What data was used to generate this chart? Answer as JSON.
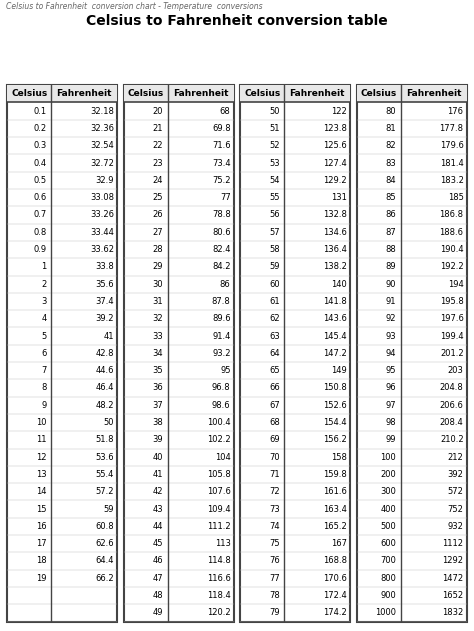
{
  "title": "Celsius to Fahrenheit conversion table",
  "subtitle": "Celsius to Fahrenheit  conversion chart - Temperature  conversions",
  "background_color": "#ffffff",
  "border_color": "#444444",
  "header_bg": "#e8e8e8",
  "divider_color": "#888888",
  "row_line_color": "#bbbbbb",
  "font_size_title": 10,
  "font_size_subtitle": 5.5,
  "font_size_header": 6.5,
  "font_size_data": 6.0,
  "columns": [
    {
      "celsius": [
        "0.1",
        "0.2",
        "0.3",
        "0.4",
        "0.5",
        "0.6",
        "0.7",
        "0.8",
        "0.9",
        "1",
        "2",
        "3",
        "4",
        "5",
        "6",
        "7",
        "8",
        "9",
        "10",
        "11",
        "12",
        "13",
        "14",
        "15",
        "16",
        "17",
        "18",
        "19"
      ],
      "fahrenheit": [
        "32.18",
        "32.36",
        "32.54",
        "32.72",
        "32.9",
        "33.08",
        "33.26",
        "33.44",
        "33.62",
        "33.8",
        "35.6",
        "37.4",
        "39.2",
        "41",
        "42.8",
        "44.6",
        "46.4",
        "48.2",
        "50",
        "51.8",
        "53.6",
        "55.4",
        "57.2",
        "59",
        "60.8",
        "62.6",
        "64.4",
        "66.2"
      ]
    },
    {
      "celsius": [
        "20",
        "21",
        "22",
        "23",
        "24",
        "25",
        "26",
        "27",
        "28",
        "29",
        "30",
        "31",
        "32",
        "33",
        "34",
        "35",
        "36",
        "37",
        "38",
        "39",
        "40",
        "41",
        "42",
        "43",
        "44",
        "45",
        "46",
        "47",
        "48",
        "49"
      ],
      "fahrenheit": [
        "68",
        "69.8",
        "71.6",
        "73.4",
        "75.2",
        "77",
        "78.8",
        "80.6",
        "82.4",
        "84.2",
        "86",
        "87.8",
        "89.6",
        "91.4",
        "93.2",
        "95",
        "96.8",
        "98.6",
        "100.4",
        "102.2",
        "104",
        "105.8",
        "107.6",
        "109.4",
        "111.2",
        "113",
        "114.8",
        "116.6",
        "118.4",
        "120.2"
      ]
    },
    {
      "celsius": [
        "50",
        "51",
        "52",
        "53",
        "54",
        "55",
        "56",
        "57",
        "58",
        "59",
        "60",
        "61",
        "62",
        "63",
        "64",
        "65",
        "66",
        "67",
        "68",
        "69",
        "70",
        "71",
        "72",
        "73",
        "74",
        "75",
        "76",
        "77",
        "78",
        "79"
      ],
      "fahrenheit": [
        "122",
        "123.8",
        "125.6",
        "127.4",
        "129.2",
        "131",
        "132.8",
        "134.6",
        "136.4",
        "138.2",
        "140",
        "141.8",
        "143.6",
        "145.4",
        "147.2",
        "149",
        "150.8",
        "152.6",
        "154.4",
        "156.2",
        "158",
        "159.8",
        "161.6",
        "163.4",
        "165.2",
        "167",
        "168.8",
        "170.6",
        "172.4",
        "174.2"
      ]
    },
    {
      "celsius": [
        "80",
        "81",
        "82",
        "83",
        "84",
        "85",
        "86",
        "87",
        "88",
        "89",
        "90",
        "91",
        "92",
        "93",
        "94",
        "95",
        "96",
        "97",
        "98",
        "99",
        "100",
        "200",
        "300",
        "400",
        "500",
        "600",
        "700",
        "800",
        "900",
        "1000"
      ],
      "fahrenheit": [
        "176",
        "177.8",
        "179.6",
        "181.4",
        "183.2",
        "185",
        "186.8",
        "188.6",
        "190.4",
        "192.2",
        "194",
        "195.8",
        "197.6",
        "199.4",
        "201.2",
        "203",
        "204.8",
        "206.6",
        "208.4",
        "210.2",
        "212",
        "392",
        "572",
        "752",
        "932",
        "1112",
        "1292",
        "1472",
        "1652",
        "1832"
      ]
    }
  ]
}
